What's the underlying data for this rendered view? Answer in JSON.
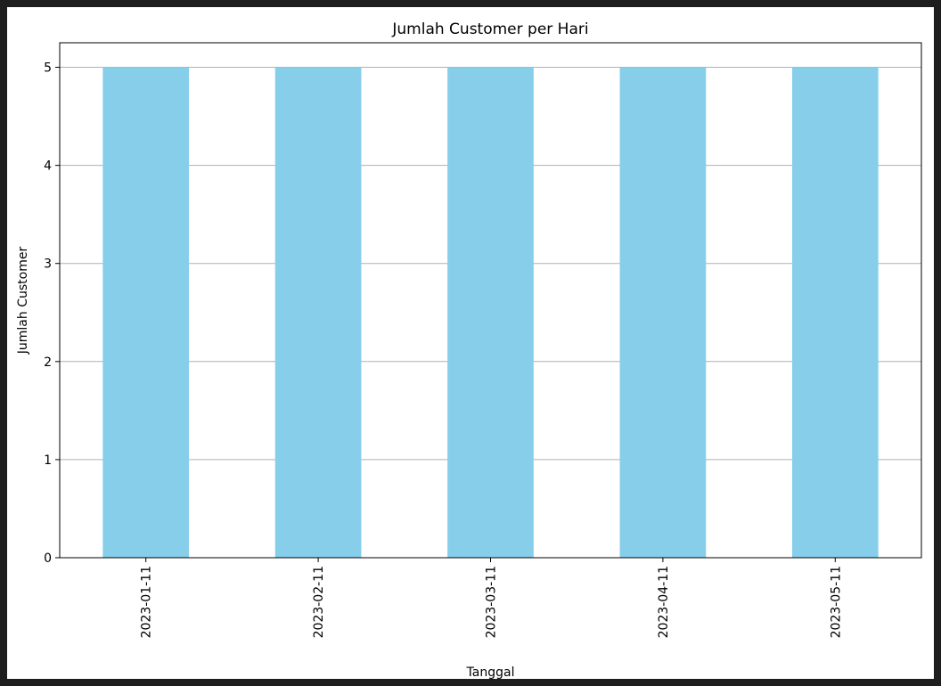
{
  "chart_data": {
    "type": "bar",
    "title": "Jumlah Customer per Hari",
    "xlabel": "Tanggal",
    "ylabel": "Jumlah Customer",
    "categories": [
      "2023-01-11",
      "2023-02-11",
      "2023-03-11",
      "2023-04-11",
      "2023-05-11"
    ],
    "values": [
      5,
      5,
      5,
      5,
      5
    ],
    "ylim": [
      0,
      5.25
    ],
    "yticks": [
      0,
      1,
      2,
      3,
      4,
      5
    ],
    "bar_color": "#87CEEB",
    "grid": "y",
    "grid_color": "#b0b0b0",
    "x_tick_rotation": "vertical"
  }
}
